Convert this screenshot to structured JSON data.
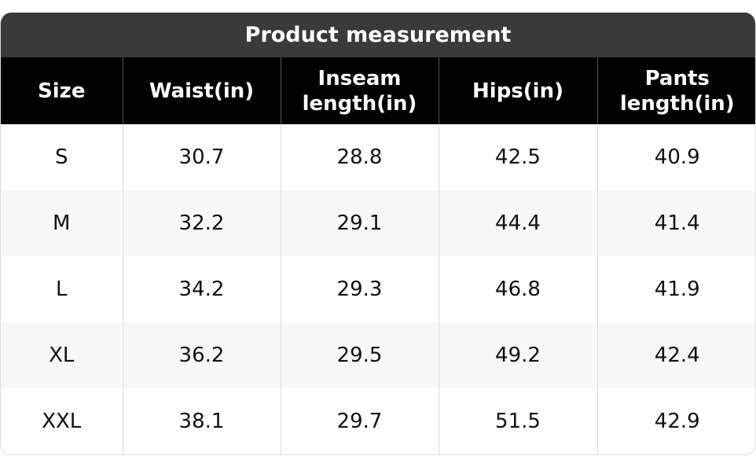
{
  "title": "Product measurement",
  "table": {
    "header": [
      "Size",
      "Waist(in)",
      "Inseam length(in)",
      "Hips(in)",
      "Pants length(in)"
    ],
    "rows": [
      [
        "S",
        "30.7",
        "28.8",
        "42.5",
        "40.9"
      ],
      [
        "M",
        "32.2",
        "29.1",
        "44.4",
        "41.4"
      ],
      [
        "L",
        "34.2",
        "29.3",
        "46.8",
        "41.9"
      ],
      [
        "XL",
        "36.2",
        "29.5",
        "49.2",
        "42.4"
      ],
      [
        "XXL",
        "38.1",
        "29.7",
        "51.5",
        "42.9"
      ]
    ]
  }
}
